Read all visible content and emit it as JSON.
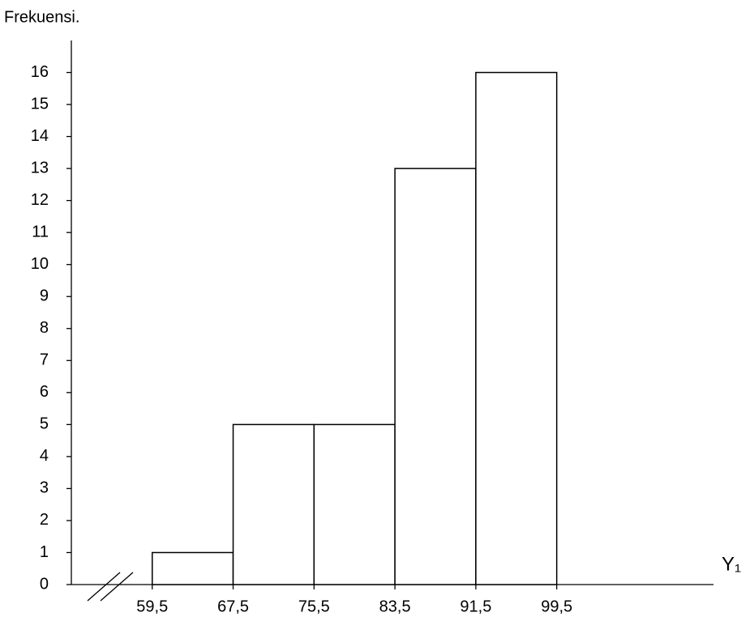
{
  "chart_data": {
    "type": "histogram",
    "y_label": "Frekuensi.",
    "x_label": "Y₁",
    "bins": [
      59.5,
      67.5,
      75.5,
      83.5,
      91.5,
      99.5
    ],
    "counts": [
      1,
      5,
      5,
      13,
      16
    ],
    "xlim": [
      51.5,
      115
    ],
    "xticks": [
      {
        "value": 59.5,
        "label": "59,5"
      },
      {
        "value": 67.5,
        "label": "67,5"
      },
      {
        "value": 75.5,
        "label": "75,5"
      },
      {
        "value": 83.5,
        "label": "83,5"
      },
      {
        "value": 91.5,
        "label": "91,5"
      },
      {
        "value": 99.5,
        "label": "99,5"
      }
    ],
    "ylim": [
      0,
      17
    ],
    "yticks": [
      0,
      1,
      2,
      3,
      4,
      5,
      6,
      7,
      8,
      9,
      10,
      11,
      12,
      13,
      14,
      15,
      16
    ],
    "color": "#ffffff",
    "axis_break": true
  }
}
